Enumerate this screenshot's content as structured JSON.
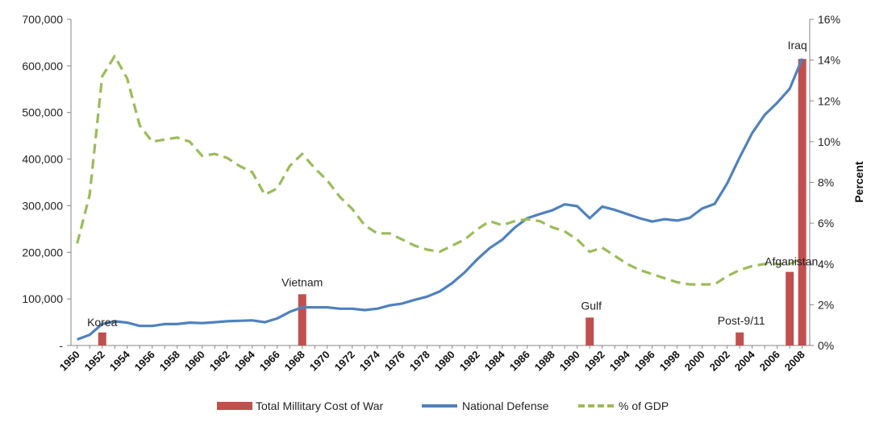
{
  "chart_data": {
    "type": "bar+line",
    "title": "",
    "xlabel": "",
    "ylabel": "",
    "ylabel_right": "Percent",
    "ylim": [
      0,
      700000
    ],
    "ylim_right": [
      0,
      16
    ],
    "yticks_left": [
      "-",
      "100,000",
      "200,000",
      "300,000",
      "400,000",
      "500,000",
      "600,000",
      "700,000"
    ],
    "yticks_left_values": [
      0,
      100000,
      200000,
      300000,
      400000,
      500000,
      600000,
      700000
    ],
    "yticks_right": [
      "0%",
      "2%",
      "4%",
      "6%",
      "8%",
      "10%",
      "12%",
      "14%",
      "16%"
    ],
    "yticks_right_values": [
      0,
      2,
      4,
      6,
      8,
      10,
      12,
      14,
      16
    ],
    "xticks": [
      "1950",
      "1952",
      "1954",
      "1956",
      "1958",
      "1960",
      "1962",
      "1964",
      "1966",
      "1968",
      "1970",
      "1972",
      "1974",
      "1976",
      "1978",
      "1980",
      "1982",
      "1984",
      "1986",
      "1988",
      "1990",
      "1992",
      "1994",
      "1996",
      "1998",
      "2000",
      "2002",
      "2004",
      "2006",
      "2008"
    ],
    "xticks_values": [
      1950,
      1952,
      1954,
      1956,
      1958,
      1960,
      1962,
      1964,
      1966,
      1968,
      1970,
      1972,
      1974,
      1976,
      1978,
      1980,
      1982,
      1984,
      1986,
      1988,
      1990,
      1992,
      1994,
      1996,
      1998,
      2000,
      2002,
      2004,
      2006,
      2008
    ],
    "x_range": [
      1949.5,
      2008.6
    ],
    "grid": false,
    "legend_position": "bottom",
    "series": [
      {
        "name": "Total Millitary Cost of War",
        "kind": "bar",
        "axis": "left",
        "color": "#c0504d",
        "points": [
          {
            "x": 1952,
            "y": 28000
          },
          {
            "x": 1968,
            "y": 110000
          },
          {
            "x": 1991,
            "y": 60000
          },
          {
            "x": 2003,
            "y": 28000
          },
          {
            "x": 2007,
            "y": 158000
          },
          {
            "x": 2008,
            "y": 615000
          }
        ]
      },
      {
        "name": "National Defense",
        "kind": "line",
        "axis": "left",
        "color": "#4f81bd",
        "x": [
          1950,
          1951,
          1952,
          1953,
          1954,
          1955,
          1956,
          1957,
          1958,
          1959,
          1960,
          1961,
          1962,
          1963,
          1964,
          1965,
          1966,
          1967,
          1968,
          1969,
          1970,
          1971,
          1972,
          1973,
          1974,
          1975,
          1976,
          1977,
          1978,
          1979,
          1980,
          1981,
          1982,
          1983,
          1984,
          1985,
          1986,
          1987,
          1988,
          1989,
          1990,
          1991,
          1992,
          1993,
          1994,
          1995,
          1996,
          1997,
          1998,
          1999,
          2000,
          2001,
          2002,
          2003,
          2004,
          2005,
          2006,
          2007,
          2008
        ],
        "y": [
          13000,
          23000,
          46000,
          52000,
          49000,
          42000,
          42000,
          46000,
          46000,
          49000,
          48000,
          50000,
          52000,
          53000,
          54000,
          50000,
          58000,
          72000,
          82000,
          82000,
          82000,
          79000,
          79000,
          76000,
          79000,
          86000,
          90000,
          98000,
          105000,
          116000,
          134000,
          157000,
          185000,
          209000,
          227000,
          253000,
          273000,
          282000,
          290000,
          303000,
          299000,
          273000,
          298000,
          291000,
          282000,
          273000,
          266000,
          271000,
          268000,
          274000,
          294000,
          304000,
          348000,
          404000,
          456000,
          495000,
          521000,
          551000,
          616000
        ]
      },
      {
        "name": "% of GDP",
        "kind": "dashed-line",
        "axis": "right",
        "color": "#9bbb59",
        "x": [
          1950,
          1951,
          1952,
          1953,
          1954,
          1955,
          1956,
          1957,
          1958,
          1959,
          1960,
          1961,
          1962,
          1963,
          1964,
          1965,
          1966,
          1967,
          1968,
          1969,
          1970,
          1971,
          1972,
          1973,
          1974,
          1975,
          1976,
          1977,
          1978,
          1979,
          1980,
          1981,
          1982,
          1983,
          1984,
          1985,
          1986,
          1987,
          1988,
          1989,
          1990,
          1991,
          1992,
          1993,
          1994,
          1995,
          1996,
          1997,
          1998,
          1999,
          2000,
          2001,
          2002,
          2003,
          2004,
          2005,
          2006,
          2007,
          2008
        ],
        "y": [
          5.0,
          7.4,
          13.2,
          14.2,
          13.1,
          10.8,
          10.0,
          10.1,
          10.2,
          10.0,
          9.3,
          9.4,
          9.2,
          8.8,
          8.5,
          7.4,
          7.7,
          8.8,
          9.4,
          8.7,
          8.1,
          7.3,
          6.7,
          5.9,
          5.5,
          5.5,
          5.2,
          4.9,
          4.7,
          4.6,
          4.9,
          5.2,
          5.7,
          6.1,
          5.9,
          6.1,
          6.2,
          6.1,
          5.8,
          5.6,
          5.2,
          4.6,
          4.8,
          4.4,
          4.0,
          3.7,
          3.5,
          3.3,
          3.1,
          3.0,
          3.0,
          3.0,
          3.4,
          3.7,
          3.9,
          4.0,
          4.0,
          4.0,
          4.3
        ]
      }
    ],
    "annotations": [
      {
        "text": "Korea",
        "x": 1952,
        "y": 28000
      },
      {
        "text": "Vietnam",
        "x": 1968,
        "y": 110000
      },
      {
        "text": "Gulf",
        "x": 1991,
        "y": 60000
      },
      {
        "text": "Post-9/11",
        "x": 2003,
        "y": 28000
      },
      {
        "text": "Afganistan",
        "x": 2007,
        "y": 158000
      },
      {
        "text": "Iraq",
        "x": 2008,
        "y": 615000
      }
    ]
  },
  "legend": {
    "bar_label": "Total Millitary Cost of War",
    "line_label": "National Defense",
    "dashed_label": "% of GDP"
  }
}
